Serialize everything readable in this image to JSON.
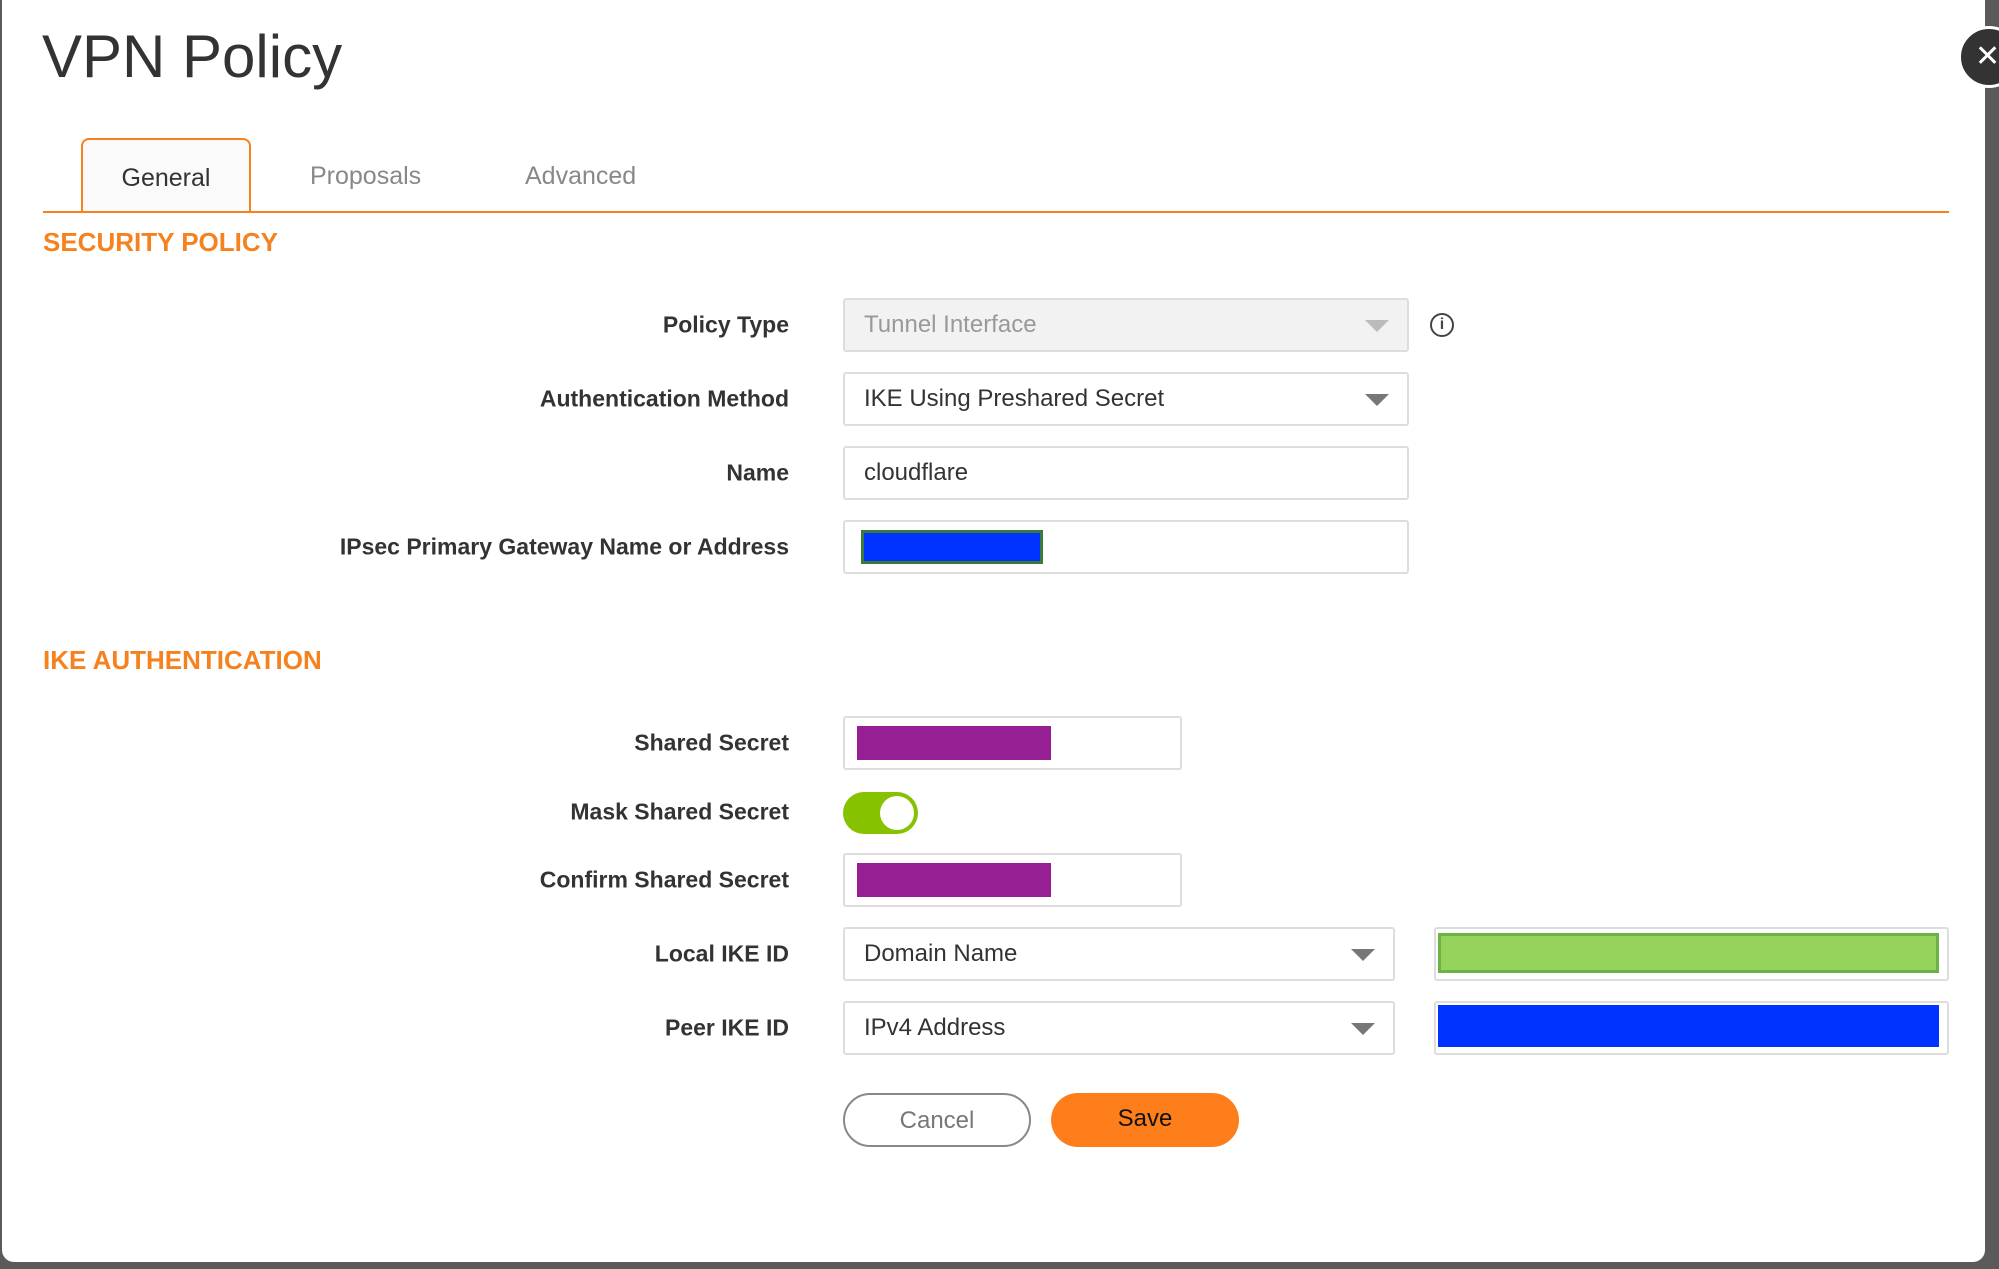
{
  "dialog": {
    "title": "VPN Policy",
    "close_icon": "close-icon"
  },
  "tabs": [
    {
      "label": "General",
      "active": true
    },
    {
      "label": "Proposals"
    },
    {
      "label": "Advanced"
    }
  ],
  "security_policy": {
    "heading": "SECURITY POLICY",
    "policy_type": {
      "label": "Policy Type",
      "value": "Tunnel Interface",
      "disabled": true
    },
    "auth_method": {
      "label": "Authentication Method",
      "value": "IKE Using Preshared Secret"
    },
    "name": {
      "label": "Name",
      "value": "cloudflare"
    },
    "gateway": {
      "label": "IPsec Primary Gateway Name or Address",
      "redacted_color": "#0033ff"
    }
  },
  "ike_auth": {
    "heading": "IKE AUTHENTICATION",
    "shared_secret": {
      "label": "Shared Secret",
      "redacted_color": "#951f93"
    },
    "mask_shared_secret": {
      "label": "Mask Shared Secret",
      "on": true
    },
    "confirm_shared_secret": {
      "label": "Confirm Shared Secret",
      "redacted_color": "#951f93"
    },
    "local_ike_id": {
      "label": "Local IKE ID",
      "value": "Domain Name",
      "redacted_color": "#95d35c"
    },
    "peer_ike_id": {
      "label": "Peer IKE ID",
      "value": "IPv4 Address",
      "redacted_color": "#0033ff"
    }
  },
  "buttons": {
    "cancel": "Cancel",
    "save": "Save"
  },
  "colors": {
    "accent": "#f5821f",
    "toggle_on": "#86c200"
  }
}
